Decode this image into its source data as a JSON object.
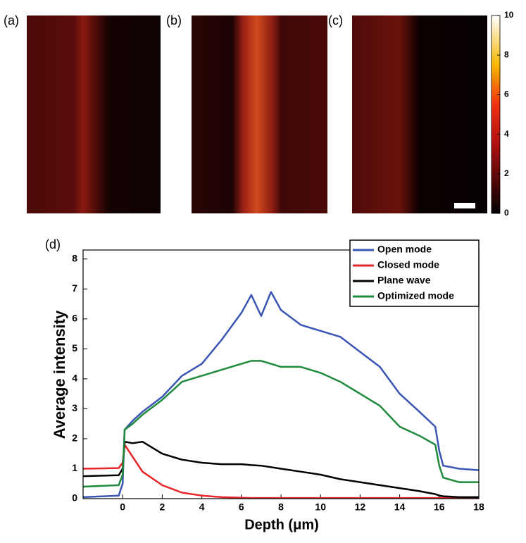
{
  "panels": {
    "labels": [
      "(a)",
      "(b)",
      "(c)"
    ]
  },
  "colorbar": {
    "lim": [
      0,
      10
    ],
    "ticks": [
      0,
      2,
      4,
      6,
      8,
      10
    ]
  },
  "chart_data": {
    "type": "line",
    "panel_label": "(d)",
    "xlabel": "Depth (μm)",
    "ylabel": "Average intensity",
    "x": [
      -2,
      -0.2,
      0,
      0.1,
      0.5,
      1,
      2,
      3,
      4,
      5,
      6,
      6.5,
      7,
      7.5,
      8,
      9,
      10,
      11,
      12,
      13,
      14,
      15,
      15.8,
      16,
      16.2,
      17,
      18
    ],
    "series": [
      {
        "name": "Open mode",
        "color": "#3a55b4",
        "values": [
          0.05,
          0.1,
          0.5,
          2.3,
          2.6,
          2.9,
          3.4,
          4.1,
          4.5,
          5.3,
          6.2,
          6.8,
          6.1,
          6.9,
          6.3,
          5.8,
          5.6,
          5.4,
          4.9,
          4.4,
          3.5,
          2.9,
          2.4,
          1.6,
          1.1,
          1.0,
          0.95
        ]
      },
      {
        "name": "Closed mode",
        "color": "#e8262a",
        "values": [
          1.0,
          1.02,
          1.2,
          1.8,
          1.4,
          0.9,
          0.45,
          0.2,
          0.1,
          0.05,
          0.03,
          0.02,
          0.02,
          0.02,
          0.02,
          0.02,
          0.02,
          0.02,
          0.02,
          0.02,
          0.02,
          0.02,
          0.02,
          0.02,
          0.02,
          0.02,
          0.02
        ]
      },
      {
        "name": "Plane wave",
        "color": "#000000",
        "values": [
          0.75,
          0.78,
          1.0,
          1.9,
          1.85,
          1.9,
          1.5,
          1.3,
          1.2,
          1.15,
          1.15,
          1.12,
          1.1,
          1.05,
          1.0,
          0.9,
          0.8,
          0.65,
          0.55,
          0.45,
          0.35,
          0.25,
          0.15,
          0.1,
          0.08,
          0.05,
          0.05
        ]
      },
      {
        "name": "Optimized mode",
        "color": "#1f8a3c",
        "values": [
          0.4,
          0.45,
          0.8,
          2.3,
          2.5,
          2.8,
          3.3,
          3.9,
          4.1,
          4.3,
          4.5,
          4.6,
          4.6,
          4.5,
          4.4,
          4.4,
          4.2,
          3.9,
          3.5,
          3.1,
          2.4,
          2.1,
          1.8,
          1.1,
          0.7,
          0.55,
          0.55
        ]
      }
    ],
    "xlim": [
      -2,
      18
    ],
    "xticks": [
      0,
      2,
      4,
      6,
      8,
      10,
      12,
      14,
      16,
      18
    ],
    "ylim": [
      0,
      8.3
    ],
    "yticks": [
      0,
      1,
      2,
      3,
      4,
      5,
      6,
      7,
      8
    ],
    "legend": "upper right"
  }
}
